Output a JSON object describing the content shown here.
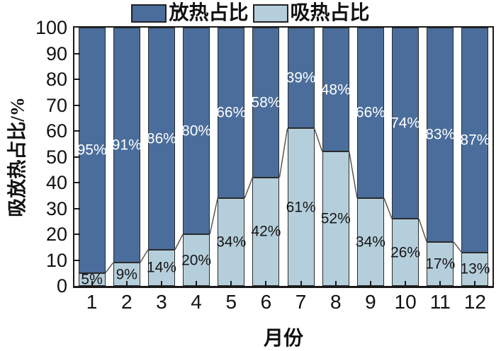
{
  "legend": [
    {
      "label": "放热占比",
      "color": "#4a6d9b"
    },
    {
      "label": "吸热占比",
      "color": "#b5cedb"
    }
  ],
  "axes": {
    "y_title": "吸放热占比/%",
    "x_title": "月份",
    "y_tick_labels": [
      "0",
      "10",
      "20",
      "30",
      "40",
      "50",
      "60",
      "70",
      "80",
      "90",
      "100"
    ]
  },
  "chart_data": {
    "type": "bar",
    "stacked": true,
    "categories": [
      "1",
      "2",
      "3",
      "4",
      "5",
      "6",
      "7",
      "8",
      "9",
      "10",
      "11",
      "12"
    ],
    "series": [
      {
        "name": "放热占比",
        "color": "#4a6d9b",
        "values": [
          95,
          91,
          86,
          80,
          66,
          58,
          39,
          48,
          66,
          74,
          83,
          87
        ],
        "labels": [
          "95%",
          "91%",
          "86%",
          "80%",
          "66%",
          "58%",
          "39%",
          "48%",
          "66%",
          "74%",
          "83%",
          "87%"
        ]
      },
      {
        "name": "吸热占比",
        "color": "#b5cedb",
        "values": [
          5,
          9,
          14,
          20,
          34,
          42,
          61,
          52,
          34,
          26,
          17,
          13
        ],
        "labels": [
          "5%",
          "9%",
          "14%",
          "20%",
          "34%",
          "42%",
          "61%",
          "52%",
          "34%",
          "26%",
          "17%",
          "13%"
        ]
      }
    ],
    "title": "",
    "xlabel": "月份",
    "ylabel": "吸放热占比/%",
    "ylim": [
      0,
      100
    ],
    "grid": false,
    "legend_position": "top",
    "bar_outline_color": "#2b2b2b",
    "series_connector_line": true,
    "connector_color": "#5c564e"
  }
}
